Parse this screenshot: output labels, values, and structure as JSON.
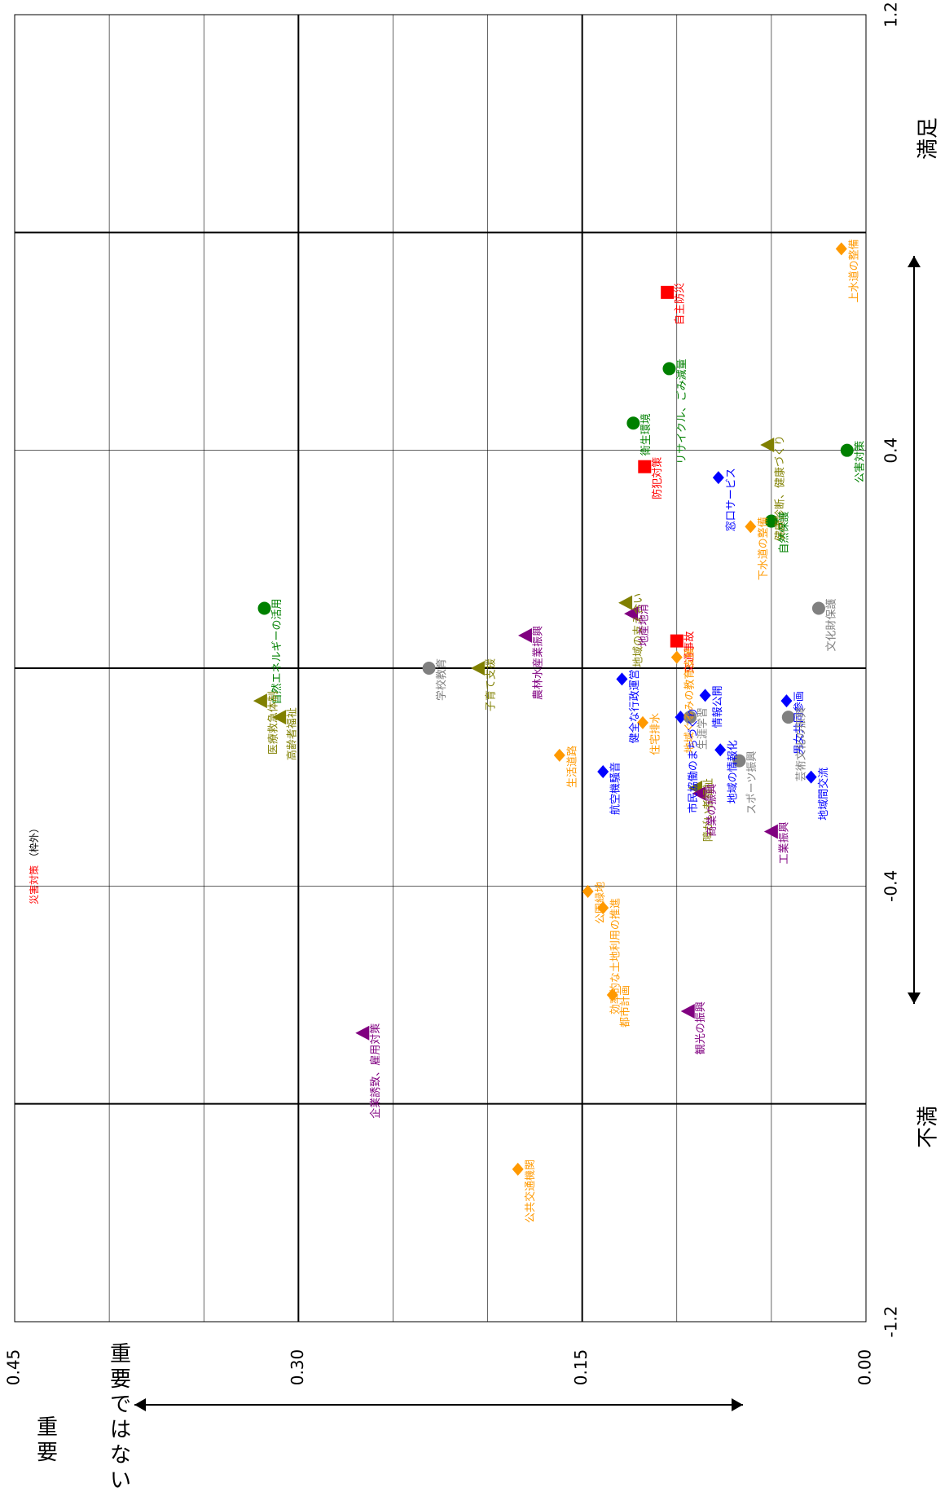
{
  "chart_data": {
    "type": "scatter",
    "title": "",
    "x_axis": {
      "range": [
        -1.2,
        1.2
      ],
      "ticks": [
        "-1.2",
        "-0.4",
        "0.4",
        "1.2"
      ],
      "left_label": "不満",
      "right_label": "満足"
    },
    "y_axis": {
      "range": [
        0,
        0.45
      ],
      "ticks": [
        "0.00",
        "0.15",
        "0.30",
        "0.45"
      ],
      "top_label": "重要",
      "bottom_label": "重要ではない"
    },
    "grid": true,
    "note": {
      "text": "災害対策",
      "suffix": "（枠外）",
      "color": "#ff0000"
    },
    "colors": {
      "red": "#ff0000",
      "green": "#008000",
      "olive": "#808000",
      "purple": "#800080",
      "grey": "#808080",
      "orange": "#ff9900",
      "blue": "#0000ff"
    },
    "points": [
      {
        "label": "上水道の整備",
        "x": 0.77,
        "y": 0.013,
        "marker": "diamond",
        "color": "orange"
      },
      {
        "label": "自主防災",
        "x": 0.69,
        "y": 0.105,
        "marker": "square",
        "color": "red"
      },
      {
        "label": "リサイクル、ごみ減量",
        "x": 0.55,
        "y": 0.104,
        "marker": "circle",
        "color": "green"
      },
      {
        "label": "健康診断、健康づくり",
        "x": 0.41,
        "y": 0.052,
        "marker": "triangle",
        "color": "olive"
      },
      {
        "label": "衛生環境",
        "x": 0.45,
        "y": 0.123,
        "marker": "circle",
        "color": "green"
      },
      {
        "label": "公害対策",
        "x": 0.4,
        "y": 0.01,
        "marker": "circle",
        "color": "green"
      },
      {
        "label": "防犯対策",
        "x": 0.37,
        "y": 0.117,
        "marker": "square",
        "color": "red"
      },
      {
        "label": "窓口サービス",
        "x": 0.35,
        "y": 0.078,
        "marker": "diamond",
        "color": "blue"
      },
      {
        "label": "自然保護",
        "x": 0.27,
        "y": 0.05,
        "marker": "circle",
        "color": "green"
      },
      {
        "label": "下水道の整備",
        "x": 0.26,
        "y": 0.061,
        "marker": "diamond",
        "color": "orange"
      },
      {
        "label": "自然エネルギーの活用",
        "x": 0.11,
        "y": 0.318,
        "marker": "circle",
        "color": "green"
      },
      {
        "label": "地域の支え合い",
        "x": 0.12,
        "y": 0.127,
        "marker": "triangle",
        "color": "olive"
      },
      {
        "label": "地産地消",
        "x": 0.1,
        "y": 0.124,
        "marker": "triangle",
        "color": "purple"
      },
      {
        "label": "農林水産業振興",
        "x": 0.06,
        "y": 0.18,
        "marker": "triangle",
        "color": "purple"
      },
      {
        "label": "文化財保護",
        "x": 0.11,
        "y": 0.025,
        "marker": "circle",
        "color": "grey"
      },
      {
        "label": "交通事故",
        "x": 0.05,
        "y": 0.1,
        "marker": "square",
        "color": "red"
      },
      {
        "label": "地域ぐるみの教育支援",
        "x": 0.02,
        "y": 0.1,
        "marker": "diamond",
        "color": "orange"
      },
      {
        "label": "男女共同参画",
        "x": -0.06,
        "y": 0.042,
        "marker": "diamond",
        "color": "blue"
      },
      {
        "label": "医療救急体制",
        "x": -0.06,
        "y": 0.32,
        "marker": "triangle",
        "color": "olive"
      },
      {
        "label": "学校教育",
        "x": 0.0,
        "y": 0.231,
        "marker": "circle",
        "color": "grey"
      },
      {
        "label": "子育て支援",
        "x": 0.0,
        "y": 0.205,
        "marker": "triangle",
        "color": "olive"
      },
      {
        "label": "健全な行政運営",
        "x": -0.02,
        "y": 0.129,
        "marker": "diamond",
        "color": "blue"
      },
      {
        "label": "情報公開",
        "x": -0.05,
        "y": 0.085,
        "marker": "diamond",
        "color": "blue"
      },
      {
        "label": "市民協働のまちづくり",
        "x": -0.09,
        "y": 0.098,
        "marker": "diamond",
        "color": "blue"
      },
      {
        "label": "生涯学習",
        "x": -0.09,
        "y": 0.093,
        "marker": "circle",
        "color": "grey"
      },
      {
        "label": "高齢者福祉",
        "x": -0.09,
        "y": 0.31,
        "marker": "triangle",
        "color": "olive"
      },
      {
        "label": "芸術文化の振興",
        "x": -0.09,
        "y": 0.041,
        "marker": "circle",
        "color": "grey"
      },
      {
        "label": "住宅排水",
        "x": -0.1,
        "y": 0.118,
        "marker": "diamond",
        "color": "orange"
      },
      {
        "label": "地域の情報化",
        "x": -0.15,
        "y": 0.077,
        "marker": "diamond",
        "color": "blue"
      },
      {
        "label": "生活道路",
        "x": -0.16,
        "y": 0.162,
        "marker": "diamond",
        "color": "orange"
      },
      {
        "label": "スポーツ振興",
        "x": -0.17,
        "y": 0.067,
        "marker": "circle",
        "color": "grey"
      },
      {
        "label": "航空機騒音",
        "x": -0.19,
        "y": 0.139,
        "marker": "diamond",
        "color": "blue"
      },
      {
        "label": "地域間交流",
        "x": -0.2,
        "y": 0.029,
        "marker": "diamond",
        "color": "blue"
      },
      {
        "label": "障がい者福祉",
        "x": -0.22,
        "y": 0.09,
        "marker": "triangle",
        "color": "olive"
      },
      {
        "label": "商業の振興",
        "x": -0.23,
        "y": 0.088,
        "marker": "triangle",
        "color": "purple"
      },
      {
        "label": "工業振興",
        "x": -0.3,
        "y": 0.05,
        "marker": "triangle",
        "color": "purple"
      },
      {
        "label": "公園緑地",
        "x": -0.41,
        "y": 0.147,
        "marker": "diamond",
        "color": "orange"
      },
      {
        "label": "効率的な土地利用の推進",
        "x": -0.44,
        "y": 0.139,
        "marker": "diamond",
        "color": "orange"
      },
      {
        "label": "都市計画",
        "x": -0.6,
        "y": 0.134,
        "marker": "diamond",
        "color": "orange"
      },
      {
        "label": "観光の振興",
        "x": -0.63,
        "y": 0.094,
        "marker": "triangle",
        "color": "purple"
      },
      {
        "label": "企業誘致、雇用対策",
        "x": -0.67,
        "y": 0.266,
        "marker": "triangle",
        "color": "purple"
      },
      {
        "label": "公共交通機関",
        "x": -0.92,
        "y": 0.184,
        "marker": "diamond",
        "color": "orange"
      }
    ]
  }
}
